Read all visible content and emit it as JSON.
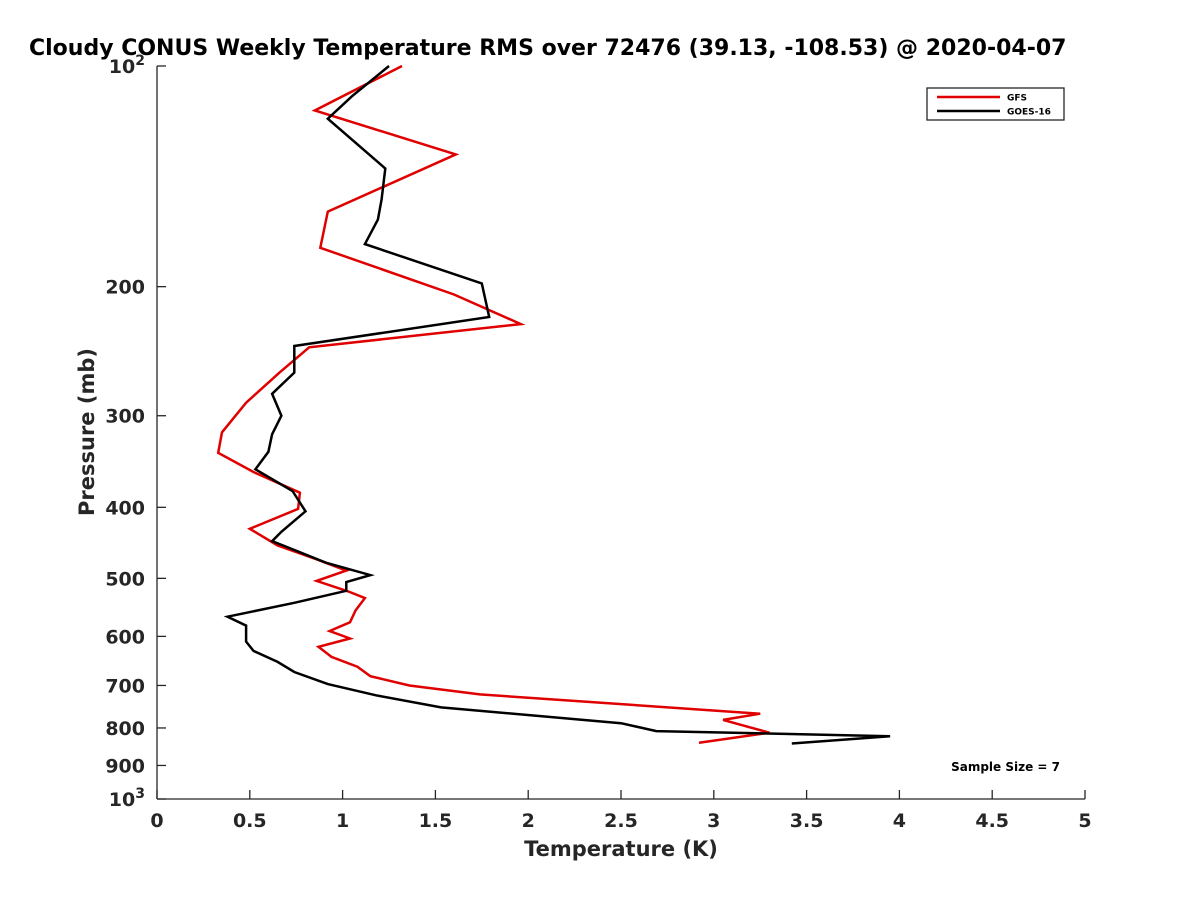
{
  "chart_data": {
    "type": "line",
    "title": "Cloudy CONUS Weekly Temperature RMS over 72476 (39.13, -108.53) @ 2020-04-07",
    "xlabel": "Temperature (K)",
    "ylabel": "Pressure (mb)",
    "xlim": [
      0,
      5
    ],
    "ylim": [
      100,
      1000
    ],
    "y_scale": "log",
    "y_reversed": true,
    "grid": false,
    "legend_position": "top-right",
    "x_ticks": [
      "0",
      "0.5",
      "1",
      "1.5",
      "2",
      "2.5",
      "3",
      "3.5",
      "4",
      "4.5",
      "5"
    ],
    "y_ticks": [
      {
        "value": 100,
        "base": "10",
        "exp": "2"
      },
      {
        "value": 200,
        "base": "200",
        "exp": ""
      },
      {
        "value": 300,
        "base": "300",
        "exp": ""
      },
      {
        "value": 400,
        "base": "400",
        "exp": ""
      },
      {
        "value": 500,
        "base": "500",
        "exp": ""
      },
      {
        "value": 600,
        "base": "600",
        "exp": ""
      },
      {
        "value": 700,
        "base": "700",
        "exp": ""
      },
      {
        "value": 800,
        "base": "800",
        "exp": ""
      },
      {
        "value": 900,
        "base": "900",
        "exp": ""
      },
      {
        "value": 1000,
        "base": "10",
        "exp": "3"
      }
    ],
    "series": [
      {
        "name": "GFS",
        "color": "#e00000",
        "points": [
          [
            1.32,
            100
          ],
          [
            0.85,
            115
          ],
          [
            1.61,
            132
          ],
          [
            0.92,
            158
          ],
          [
            0.88,
            177
          ],
          [
            1.6,
            205
          ],
          [
            1.96,
            225
          ],
          [
            0.82,
            242
          ],
          [
            0.66,
            262
          ],
          [
            0.48,
            288
          ],
          [
            0.35,
            316
          ],
          [
            0.33,
            337
          ],
          [
            0.52,
            358
          ],
          [
            0.77,
            382
          ],
          [
            0.76,
            402
          ],
          [
            0.5,
            428
          ],
          [
            0.65,
            451
          ],
          [
            0.86,
            471
          ],
          [
            1.02,
            488
          ],
          [
            0.86,
            504
          ],
          [
            1.03,
            521
          ],
          [
            1.12,
            532
          ],
          [
            1.07,
            553
          ],
          [
            1.04,
            574
          ],
          [
            0.93,
            590
          ],
          [
            1.04,
            604
          ],
          [
            0.87,
            620
          ],
          [
            0.94,
            640
          ],
          [
            1.08,
            660
          ],
          [
            1.15,
            680
          ],
          [
            1.36,
            700
          ],
          [
            1.74,
            720
          ],
          [
            3.25,
            765
          ],
          [
            3.05,
            780
          ],
          [
            3.3,
            812
          ],
          [
            2.92,
            838
          ]
        ]
      },
      {
        "name": "GOES-16",
        "color": "#000000",
        "points": [
          [
            1.25,
            100
          ],
          [
            1.05,
            110
          ],
          [
            0.92,
            118
          ],
          [
            1.23,
            138
          ],
          [
            1.21,
            152
          ],
          [
            1.19,
            162
          ],
          [
            1.12,
            175
          ],
          [
            1.75,
            198
          ],
          [
            1.79,
            220
          ],
          [
            0.74,
            241
          ],
          [
            0.74,
            262
          ],
          [
            0.62,
            280
          ],
          [
            0.67,
            300
          ],
          [
            0.62,
            318
          ],
          [
            0.6,
            336
          ],
          [
            0.53,
            355
          ],
          [
            0.73,
            380
          ],
          [
            0.8,
            405
          ],
          [
            0.67,
            432
          ],
          [
            0.62,
            445
          ],
          [
            0.68,
            451
          ],
          [
            0.91,
            476
          ],
          [
            1.15,
            495
          ],
          [
            1.02,
            506
          ],
          [
            1.02,
            520
          ],
          [
            0.74,
            540
          ],
          [
            0.38,
            564
          ],
          [
            0.48,
            580
          ],
          [
            0.48,
            610
          ],
          [
            0.52,
            628
          ],
          [
            0.65,
            650
          ],
          [
            0.74,
            671
          ],
          [
            0.92,
            697
          ],
          [
            1.18,
            722
          ],
          [
            1.53,
            750
          ],
          [
            2.5,
            788
          ],
          [
            2.69,
            808
          ],
          [
            3.95,
            821
          ],
          [
            3.42,
            840
          ]
        ]
      }
    ],
    "annotation": "Sample Size = 7"
  }
}
